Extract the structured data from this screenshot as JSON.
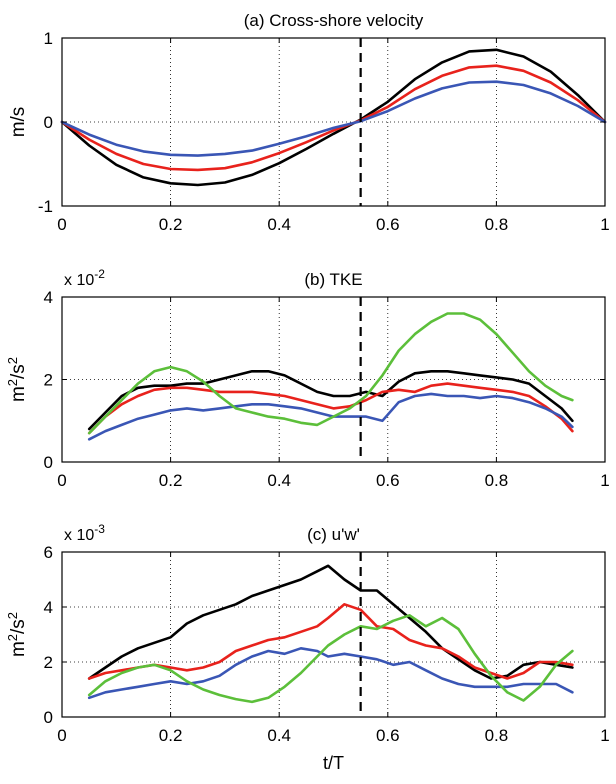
{
  "chart_data": [
    {
      "type": "line",
      "title": "(a) Cross-shore velocity",
      "xlabel": "",
      "ylabel": "m/s",
      "xlim": [
        0,
        1
      ],
      "ylim": [
        -1,
        1
      ],
      "xticks": [
        "0",
        "0.2",
        "0.4",
        "0.6",
        "0.8",
        "1"
      ],
      "yticks": [
        "-1",
        "0",
        "1"
      ],
      "grid": true,
      "reference_x": 0.55,
      "series": [
        {
          "color": "#000000",
          "x": [
            0,
            0.05,
            0.1,
            0.15,
            0.2,
            0.25,
            0.3,
            0.35,
            0.4,
            0.45,
            0.5,
            0.55,
            0.6,
            0.65,
            0.7,
            0.75,
            0.8,
            0.85,
            0.9,
            0.95,
            1.0
          ],
          "y": [
            0,
            -0.28,
            -0.51,
            -0.66,
            -0.73,
            -0.75,
            -0.72,
            -0.63,
            -0.49,
            -0.32,
            -0.14,
            0.03,
            0.24,
            0.51,
            0.71,
            0.84,
            0.86,
            0.78,
            0.6,
            0.32,
            0
          ]
        },
        {
          "color": "#e8221c",
          "x": [
            0,
            0.05,
            0.1,
            0.15,
            0.2,
            0.25,
            0.3,
            0.35,
            0.4,
            0.45,
            0.5,
            0.55,
            0.6,
            0.65,
            0.7,
            0.75,
            0.8,
            0.85,
            0.9,
            0.95,
            1.0
          ],
          "y": [
            0,
            -0.21,
            -0.38,
            -0.5,
            -0.56,
            -0.57,
            -0.55,
            -0.48,
            -0.37,
            -0.24,
            -0.1,
            0.02,
            0.18,
            0.39,
            0.55,
            0.65,
            0.67,
            0.61,
            0.47,
            0.26,
            0
          ]
        },
        {
          "color": "#3a56b5",
          "x": [
            0,
            0.05,
            0.1,
            0.15,
            0.2,
            0.25,
            0.3,
            0.35,
            0.4,
            0.45,
            0.5,
            0.55,
            0.6,
            0.65,
            0.7,
            0.75,
            0.8,
            0.85,
            0.9,
            0.95,
            1.0
          ],
          "y": [
            0,
            -0.15,
            -0.27,
            -0.35,
            -0.39,
            -0.4,
            -0.38,
            -0.34,
            -0.26,
            -0.17,
            -0.07,
            0.01,
            0.13,
            0.28,
            0.4,
            0.47,
            0.48,
            0.44,
            0.34,
            0.19,
            0
          ]
        }
      ]
    },
    {
      "type": "line",
      "title": "(b) TKE",
      "xlabel": "",
      "ylabel": "m2/s2",
      "multiplier": "x 10-2",
      "xlim": [
        0,
        1
      ],
      "ylim": [
        0,
        4
      ],
      "xticks": [
        "0",
        "0.2",
        "0.4",
        "0.6",
        "0.8",
        "1"
      ],
      "yticks": [
        "0",
        "2",
        "4"
      ],
      "grid": true,
      "reference_x": 0.55,
      "series": [
        {
          "color": "#000000",
          "x": [
            0.05,
            0.08,
            0.11,
            0.14,
            0.17,
            0.2,
            0.23,
            0.26,
            0.29,
            0.32,
            0.35,
            0.38,
            0.41,
            0.44,
            0.47,
            0.5,
            0.53,
            0.56,
            0.59,
            0.62,
            0.65,
            0.68,
            0.71,
            0.74,
            0.77,
            0.8,
            0.83,
            0.86,
            0.89,
            0.92,
            0.94
          ],
          "y": [
            0.8,
            1.2,
            1.6,
            1.8,
            1.85,
            1.85,
            1.9,
            1.9,
            2.0,
            2.1,
            2.2,
            2.2,
            2.1,
            1.9,
            1.7,
            1.6,
            1.6,
            1.7,
            1.6,
            1.95,
            2.15,
            2.2,
            2.2,
            2.15,
            2.1,
            2.05,
            2.0,
            1.9,
            1.6,
            1.3,
            1.0
          ]
        },
        {
          "color": "#e8221c",
          "x": [
            0.05,
            0.08,
            0.11,
            0.14,
            0.17,
            0.2,
            0.23,
            0.26,
            0.29,
            0.32,
            0.35,
            0.38,
            0.41,
            0.44,
            0.47,
            0.5,
            0.53,
            0.56,
            0.59,
            0.62,
            0.65,
            0.68,
            0.71,
            0.74,
            0.77,
            0.8,
            0.83,
            0.86,
            0.89,
            0.92,
            0.94
          ],
          "y": [
            0.7,
            1.1,
            1.4,
            1.6,
            1.75,
            1.8,
            1.8,
            1.75,
            1.7,
            1.7,
            1.7,
            1.65,
            1.6,
            1.5,
            1.4,
            1.3,
            1.35,
            1.5,
            1.7,
            1.75,
            1.7,
            1.85,
            1.9,
            1.85,
            1.8,
            1.75,
            1.7,
            1.6,
            1.35,
            1.05,
            0.75
          ]
        },
        {
          "color": "#3a56b5",
          "x": [
            0.05,
            0.08,
            0.11,
            0.14,
            0.17,
            0.2,
            0.23,
            0.26,
            0.29,
            0.32,
            0.35,
            0.38,
            0.41,
            0.44,
            0.47,
            0.5,
            0.53,
            0.56,
            0.59,
            0.62,
            0.65,
            0.68,
            0.71,
            0.74,
            0.77,
            0.8,
            0.83,
            0.86,
            0.89,
            0.92,
            0.94
          ],
          "y": [
            0.55,
            0.75,
            0.9,
            1.05,
            1.15,
            1.25,
            1.3,
            1.25,
            1.3,
            1.35,
            1.4,
            1.4,
            1.35,
            1.3,
            1.2,
            1.1,
            1.1,
            1.1,
            1.0,
            1.45,
            1.6,
            1.65,
            1.6,
            1.6,
            1.55,
            1.6,
            1.55,
            1.45,
            1.3,
            1.1,
            0.85
          ]
        },
        {
          "color": "#5cbf3a",
          "x": [
            0.05,
            0.08,
            0.11,
            0.14,
            0.17,
            0.2,
            0.23,
            0.26,
            0.29,
            0.32,
            0.35,
            0.38,
            0.41,
            0.44,
            0.47,
            0.5,
            0.53,
            0.56,
            0.59,
            0.62,
            0.65,
            0.68,
            0.71,
            0.74,
            0.77,
            0.8,
            0.83,
            0.86,
            0.89,
            0.92,
            0.94
          ],
          "y": [
            0.7,
            1.1,
            1.5,
            1.9,
            2.2,
            2.3,
            2.2,
            1.95,
            1.6,
            1.3,
            1.2,
            1.1,
            1.05,
            0.95,
            0.9,
            1.1,
            1.3,
            1.6,
            2.1,
            2.7,
            3.1,
            3.4,
            3.6,
            3.6,
            3.45,
            3.1,
            2.65,
            2.2,
            1.85,
            1.6,
            1.5
          ]
        }
      ]
    },
    {
      "type": "line",
      "title": "(c) u'w'",
      "xlabel": "t/T",
      "ylabel": "m2/s2",
      "multiplier": "x 10-3",
      "xlim": [
        0,
        1
      ],
      "ylim": [
        0,
        6
      ],
      "xticks": [
        "0",
        "0.2",
        "0.4",
        "0.6",
        "0.8",
        "1"
      ],
      "yticks": [
        "0",
        "2",
        "4",
        "6"
      ],
      "grid": true,
      "reference_x": 0.55,
      "series": [
        {
          "color": "#000000",
          "x": [
            0.05,
            0.08,
            0.11,
            0.14,
            0.17,
            0.2,
            0.23,
            0.26,
            0.29,
            0.32,
            0.35,
            0.38,
            0.41,
            0.44,
            0.47,
            0.49,
            0.52,
            0.55,
            0.58,
            0.61,
            0.64,
            0.67,
            0.7,
            0.73,
            0.76,
            0.79,
            0.82,
            0.85,
            0.88,
            0.91,
            0.94
          ],
          "y": [
            1.4,
            1.8,
            2.2,
            2.5,
            2.7,
            2.9,
            3.4,
            3.7,
            3.9,
            4.1,
            4.4,
            4.6,
            4.8,
            5.0,
            5.3,
            5.5,
            5.0,
            4.6,
            4.6,
            4.1,
            3.6,
            3.1,
            2.5,
            2.1,
            1.7,
            1.4,
            1.5,
            1.9,
            2.0,
            1.9,
            1.8
          ]
        },
        {
          "color": "#e8221c",
          "x": [
            0.05,
            0.08,
            0.11,
            0.14,
            0.17,
            0.2,
            0.23,
            0.26,
            0.29,
            0.32,
            0.35,
            0.38,
            0.41,
            0.44,
            0.47,
            0.49,
            0.52,
            0.55,
            0.58,
            0.61,
            0.64,
            0.67,
            0.7,
            0.73,
            0.76,
            0.79,
            0.82,
            0.85,
            0.88,
            0.91,
            0.94
          ],
          "y": [
            1.4,
            1.6,
            1.7,
            1.8,
            1.9,
            1.8,
            1.7,
            1.8,
            2.0,
            2.4,
            2.6,
            2.8,
            2.9,
            3.1,
            3.3,
            3.6,
            4.1,
            3.9,
            3.3,
            3.2,
            2.8,
            2.6,
            2.5,
            2.2,
            1.8,
            1.6,
            1.4,
            1.6,
            2.0,
            2.0,
            1.9
          ]
        },
        {
          "color": "#3a56b5",
          "x": [
            0.05,
            0.08,
            0.11,
            0.14,
            0.17,
            0.2,
            0.23,
            0.26,
            0.29,
            0.32,
            0.35,
            0.38,
            0.41,
            0.44,
            0.47,
            0.49,
            0.52,
            0.55,
            0.58,
            0.61,
            0.64,
            0.67,
            0.7,
            0.73,
            0.76,
            0.79,
            0.82,
            0.85,
            0.88,
            0.91,
            0.94
          ],
          "y": [
            0.7,
            0.9,
            1.0,
            1.1,
            1.2,
            1.3,
            1.2,
            1.3,
            1.5,
            1.9,
            2.2,
            2.4,
            2.3,
            2.5,
            2.4,
            2.2,
            2.3,
            2.2,
            2.1,
            1.9,
            2.0,
            1.7,
            1.4,
            1.2,
            1.1,
            1.1,
            1.1,
            1.2,
            1.2,
            1.2,
            0.9
          ]
        },
        {
          "color": "#5cbf3a",
          "x": [
            0.05,
            0.08,
            0.11,
            0.14,
            0.17,
            0.2,
            0.23,
            0.26,
            0.29,
            0.32,
            0.35,
            0.38,
            0.41,
            0.44,
            0.47,
            0.49,
            0.52,
            0.55,
            0.58,
            0.61,
            0.64,
            0.67,
            0.7,
            0.73,
            0.76,
            0.79,
            0.82,
            0.85,
            0.88,
            0.91,
            0.94
          ],
          "y": [
            0.8,
            1.3,
            1.6,
            1.8,
            1.9,
            1.7,
            1.3,
            1.0,
            0.8,
            0.65,
            0.55,
            0.7,
            1.1,
            1.6,
            2.2,
            2.6,
            3.0,
            3.3,
            3.2,
            3.5,
            3.7,
            3.3,
            3.6,
            3.2,
            2.3,
            1.5,
            0.9,
            0.6,
            1.1,
            1.9,
            2.4
          ]
        }
      ]
    }
  ]
}
